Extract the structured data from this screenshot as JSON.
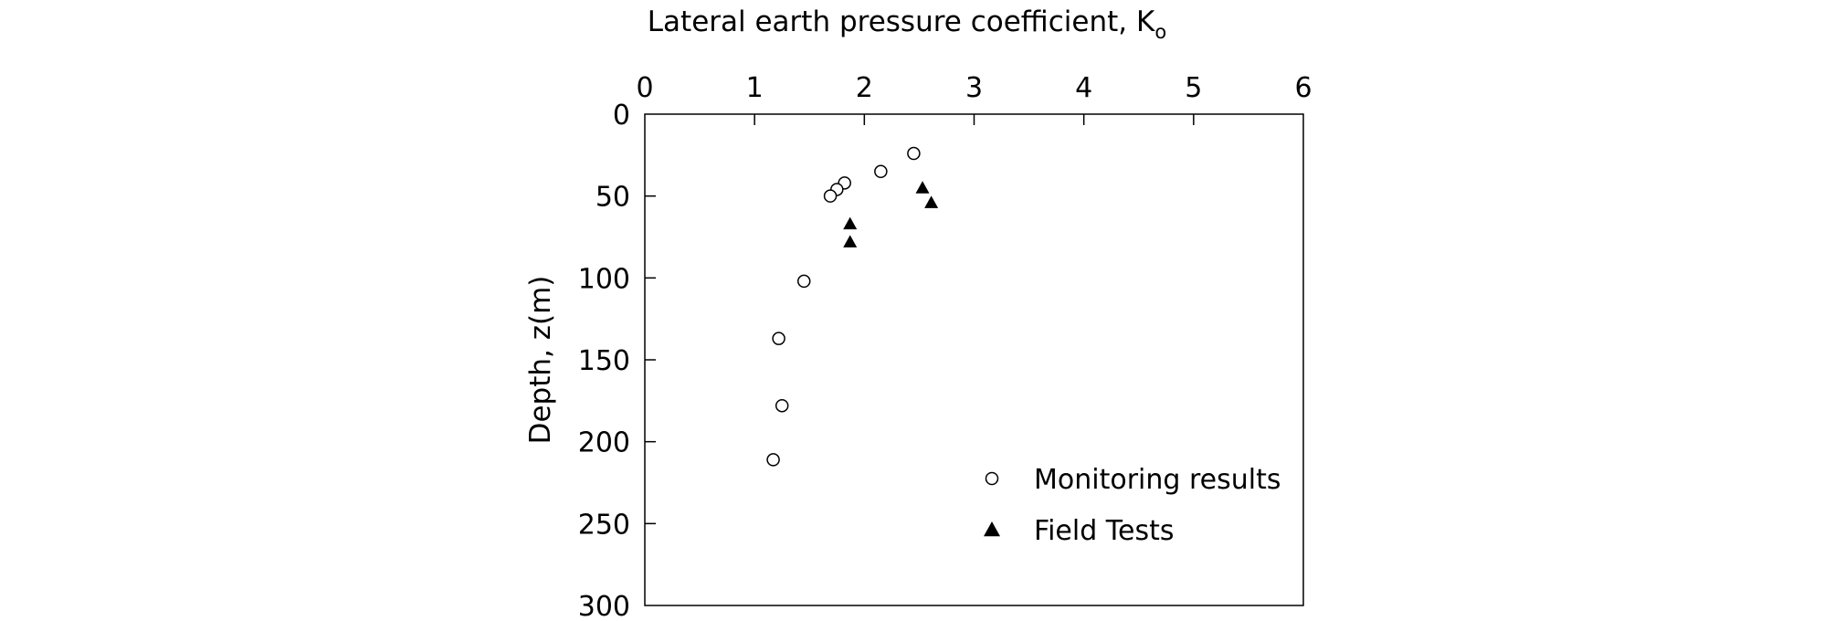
{
  "chart_data": {
    "type": "scatter",
    "title": "Lateral earth pressure coefficient, K",
    "title_subscript": "o",
    "xlabel": "",
    "ylabel": "Depth, z(m)",
    "xlim": [
      0,
      6
    ],
    "ylim": [
      0,
      300
    ],
    "y_inverted": true,
    "x_axis_position": "top",
    "xticks": [
      "0",
      "1",
      "2",
      "3",
      "4",
      "5",
      "6"
    ],
    "yticks": [
      "0",
      "50",
      "100",
      "150",
      "200",
      "250",
      "300"
    ],
    "grid": false,
    "legend_position": "bottom-right",
    "series": [
      {
        "name": "Monitoring results",
        "marker": "open-circle",
        "points": [
          {
            "x": 2.45,
            "y": 24
          },
          {
            "x": 2.15,
            "y": 35
          },
          {
            "x": 1.82,
            "y": 42
          },
          {
            "x": 1.75,
            "y": 46
          },
          {
            "x": 1.69,
            "y": 50
          },
          {
            "x": 1.45,
            "y": 102
          },
          {
            "x": 1.22,
            "y": 137
          },
          {
            "x": 1.25,
            "y": 178
          },
          {
            "x": 1.17,
            "y": 211
          }
        ]
      },
      {
        "name": "Field Tests",
        "marker": "filled-triangle",
        "points": [
          {
            "x": 2.53,
            "y": 45
          },
          {
            "x": 2.61,
            "y": 54
          },
          {
            "x": 1.87,
            "y": 67
          },
          {
            "x": 1.87,
            "y": 78
          }
        ]
      }
    ]
  }
}
